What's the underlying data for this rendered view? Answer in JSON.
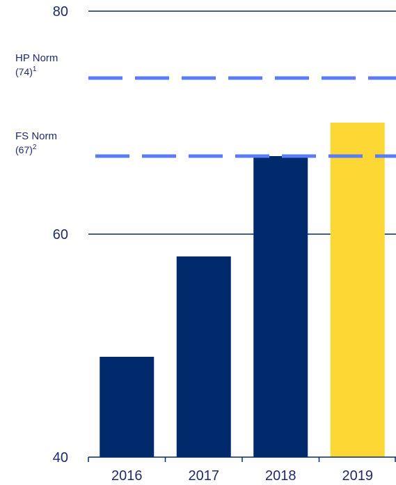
{
  "chart_data": {
    "type": "bar",
    "categories": [
      "2016",
      "2017",
      "2018",
      "2019"
    ],
    "values": [
      49,
      58,
      67,
      70
    ],
    "ylim": [
      40,
      80
    ],
    "yticks": [
      "40",
      "60",
      "80"
    ],
    "grid": true,
    "bar_colors": [
      "#002a6c",
      "#002a6c",
      "#002a6c",
      "#fdd835"
    ],
    "axis_color": "#002a6c",
    "reference_lines": [
      {
        "label": "HP Norm",
        "value_label": "(74)",
        "footnote": "1",
        "value": 74,
        "color": "#5b7cf5"
      },
      {
        "label": "FS Norm",
        "value_label": "(67)",
        "footnote": "2",
        "value": 67,
        "color": "#5b7cf5"
      }
    ]
  }
}
